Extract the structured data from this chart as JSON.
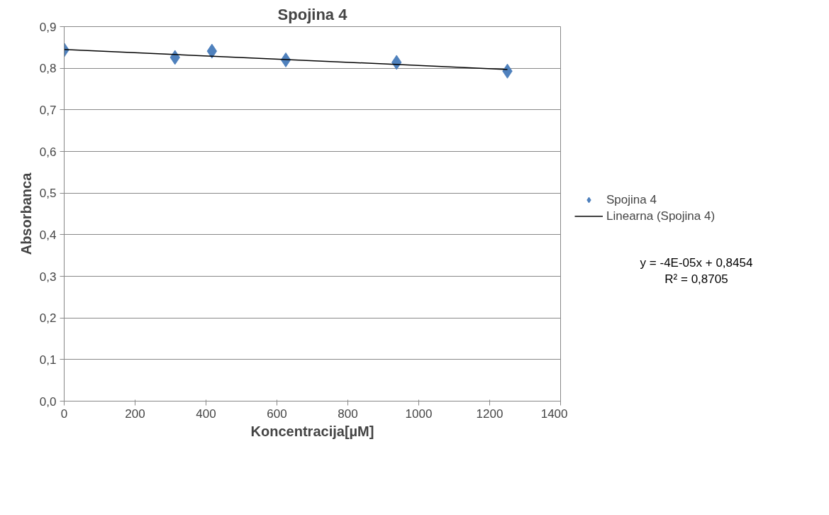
{
  "chart_data": {
    "type": "scatter",
    "title": "Spojina 4",
    "xlabel": "Koncentracija[µM]",
    "ylabel": "Absorbanca",
    "x": [
      0,
      312.5,
      416.7,
      625,
      937.5,
      1250
    ],
    "series": [
      {
        "name": "Spojina 4",
        "color": "#4f81bd",
        "values": [
          0.844,
          0.826,
          0.841,
          0.82,
          0.814,
          0.793
        ],
        "marker": "diamond"
      },
      {
        "name": "Linearna (Spojina 4)",
        "type": "line",
        "color": "#000000",
        "x": [
          0,
          1250
        ],
        "values": [
          0.845,
          0.797
        ],
        "marker": "none"
      }
    ],
    "xlim": [
      0,
      1400
    ],
    "xticks": [
      0,
      200,
      400,
      600,
      800,
      1000,
      1200,
      1400
    ],
    "ylim": [
      0,
      0.9
    ],
    "yticks": [
      {
        "value": 0,
        "label": "0,0"
      },
      {
        "value": 0.1,
        "label": "0,1"
      },
      {
        "value": 0.2,
        "label": "0,2"
      },
      {
        "value": 0.3,
        "label": "0,3"
      },
      {
        "value": 0.4,
        "label": "0,4"
      },
      {
        "value": 0.5,
        "label": "0,5"
      },
      {
        "value": 0.6,
        "label": "0,6"
      },
      {
        "value": 0.7,
        "label": "0,7"
      },
      {
        "value": 0.8,
        "label": "0,8"
      },
      {
        "value": 0.9,
        "label": "0,9"
      }
    ],
    "grid": "y",
    "legend": "right",
    "annotations": [
      "y = -4E-05x + 0,8454",
      "R² = 0,8705"
    ]
  }
}
